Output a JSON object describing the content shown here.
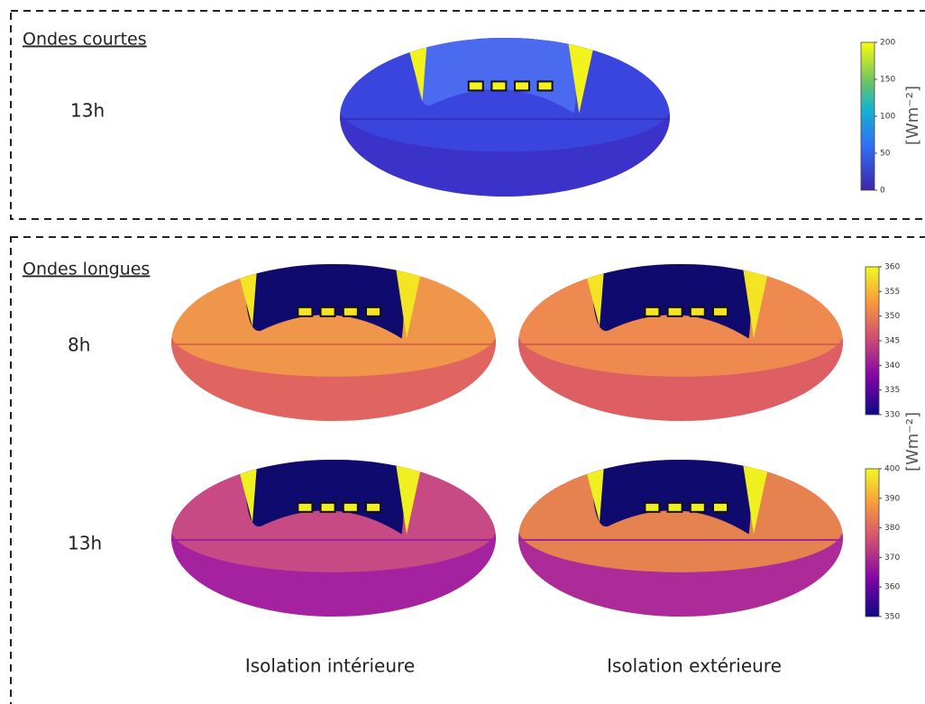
{
  "shortwave": {
    "title": "Ondes courtes",
    "rows": [
      {
        "label": "13h"
      }
    ],
    "colorbar": {
      "ticks": [
        0,
        50,
        100,
        150,
        200
      ],
      "unit": "[Wm⁻²]"
    }
  },
  "longwave": {
    "title": "Ondes longues",
    "rows": [
      {
        "label": "8h",
        "colorbar": {
          "ticks": [
            330,
            335,
            340,
            345,
            350,
            355,
            360
          ]
        }
      },
      {
        "label": "13h",
        "colorbar": {
          "ticks": [
            350,
            360,
            370,
            380,
            390,
            400
          ]
        }
      }
    ],
    "unit": "[Wm⁻²]",
    "columns": [
      "Isolation intérieure",
      "Isolation extérieure"
    ]
  }
}
